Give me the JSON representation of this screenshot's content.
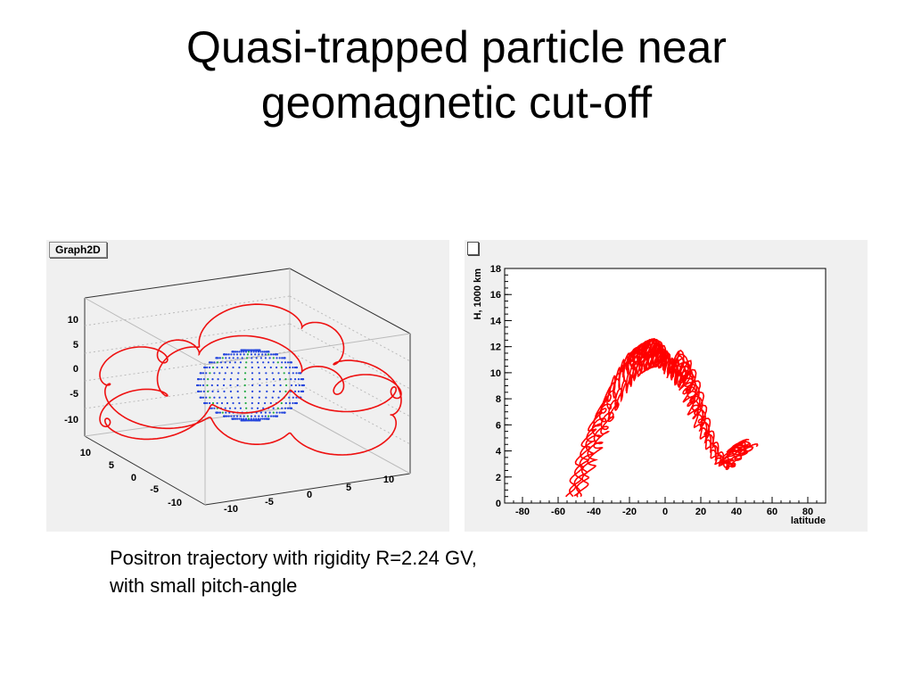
{
  "title": {
    "line1": "Quasi-trapped particle near",
    "line2": "geomagnetic cut-off"
  },
  "left_plot": {
    "label": "Graph2D",
    "z_ticks": [
      "10",
      "5",
      "0",
      "-5",
      "-10"
    ],
    "y_ticks": [
      "10",
      "5",
      "0",
      "-5",
      "-10"
    ],
    "x_ticks": [
      "-10",
      "-5",
      "0",
      "5",
      "10"
    ],
    "colors": {
      "trajectory": "#ee1111",
      "earth": "#2244dd",
      "earth_grid": "#22aa44"
    }
  },
  "chart_data": {
    "type": "line",
    "title": "",
    "xlabel": "latitude",
    "ylabel": "H, 1000 km",
    "xlim": [
      -90,
      90
    ],
    "ylim": [
      0,
      18
    ],
    "x_ticks": [
      "-80",
      "-60",
      "-40",
      "-20",
      "0",
      "20",
      "40",
      "60",
      "80"
    ],
    "y_ticks": [
      "0",
      "2",
      "4",
      "6",
      "8",
      "10",
      "12",
      "14",
      "16",
      "18"
    ],
    "series": [
      {
        "name": "trajectory",
        "color": "#ff0000",
        "x": [
          -51,
          -46,
          -41,
          -36,
          -31,
          -27,
          -23,
          -20,
          -16,
          -13,
          -9,
          -6,
          -3,
          0,
          3,
          6,
          9,
          12,
          15,
          18,
          22,
          26,
          30,
          34,
          38,
          42,
          46
        ],
        "y": [
          0.5,
          2.5,
          4.5,
          6.2,
          7.6,
          8.8,
          9.6,
          10.4,
          10.9,
          11.2,
          11.5,
          11.6,
          11.4,
          11.0,
          10.2,
          9.8,
          10.8,
          9.6,
          8.4,
          7.0,
          5.6,
          4.4,
          3.4,
          2.8,
          3.6,
          4.2,
          4.5
        ]
      }
    ]
  },
  "caption": {
    "line1": "Positron trajectory with rigidity R=2.24 GV,",
    "line2": "with small pitch-angle"
  }
}
